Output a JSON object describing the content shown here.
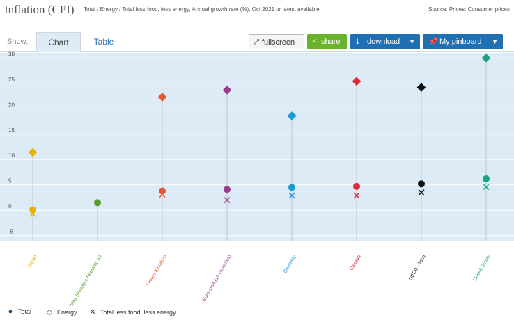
{
  "header": {
    "title": "Inflation (CPI)",
    "subtitle": "Total / Energy / Total less food, less energy, Annual growth rate (%), Oct 2021 or latest available",
    "source": "Source: Prices: Consumer prices"
  },
  "toolbar": {
    "show_label": "Show:",
    "tab_chart": "Chart",
    "tab_table": "Table",
    "fullscreen_label": "fullscreen",
    "share_label": "share",
    "download_label": "download",
    "pinboard_label": "My pinboard"
  },
  "colors": {
    "plot_bg": "#dcebf5",
    "grid": "#ffffff",
    "stem": "#bcc6cf",
    "legend_total": "#1f4e6e",
    "legend_energy": "#1f4e6e",
    "legend_core": "#1f4e6e"
  },
  "legend": {
    "total": "Total",
    "energy": "Energy",
    "core": "Total less food, less energy"
  },
  "chart_data": {
    "type": "scatter",
    "title": "Inflation (CPI)",
    "xlabel": "",
    "ylabel": "",
    "ylim": [
      -6,
      31
    ],
    "yticks": [
      -5,
      0,
      5,
      10,
      15,
      20,
      25,
      30
    ],
    "categories": [
      "Japan",
      "China (People's Republic of)",
      "United Kingdom",
      "Euro area (19 countries)",
      "Germany",
      "Canada",
      "OECD - Total",
      "United States"
    ],
    "colors": [
      "#e5b400",
      "#5b9c2e",
      "#e8572b",
      "#9b3b8e",
      "#1a9ad6",
      "#e02a3c",
      "#111111",
      "#1aa57d"
    ],
    "series": [
      {
        "name": "Total",
        "marker": "circle",
        "values": [
          0.1,
          1.5,
          3.8,
          4.1,
          4.5,
          4.7,
          5.2,
          6.2
        ]
      },
      {
        "name": "Energy",
        "marker": "diamond",
        "values": [
          11.4,
          null,
          22.3,
          23.7,
          18.6,
          25.4,
          24.2,
          30.0
        ]
      },
      {
        "name": "Total less food, less energy",
        "marker": "cross",
        "values": [
          -0.7,
          null,
          3.1,
          2.0,
          2.9,
          2.9,
          3.5,
          4.6
        ]
      }
    ]
  }
}
